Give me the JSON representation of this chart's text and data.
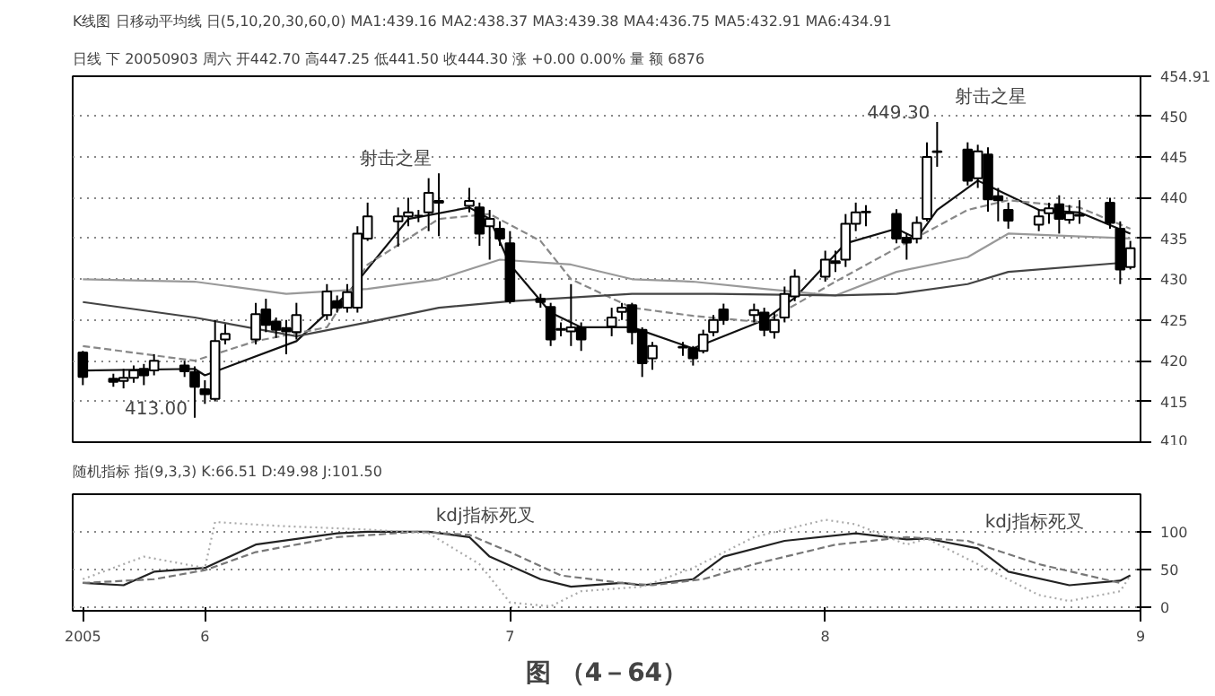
{
  "chart_data": [
    {
      "type": "candlestick",
      "title": "日线 下 20050903 周六 开442.70 高447.25 低441.50 收444.30 涨 +0.00 0.00% 量 额 6876",
      "subtitle": "K线图 日移动平均线 日(5,10,20,30,60,0) MA1:439.16 MA2:438.37 MA3:439.38 MA4:436.75 MA5:432.91 MA6:434.91",
      "x": [
        "2005-05-20",
        "2005-05-23",
        "2005-05-24",
        "2005-05-25",
        "2005-05-26",
        "2005-05-27",
        "2005-05-30",
        "2005-05-31",
        "2005-06-01",
        "2005-06-02",
        "2005-06-03",
        "2005-06-06",
        "2005-06-07",
        "2005-06-08",
        "2005-06-09",
        "2005-06-10",
        "2005-06-13",
        "2005-06-14",
        "2005-06-15",
        "2005-06-16",
        "2005-06-17",
        "2005-06-20",
        "2005-06-21",
        "2005-06-22",
        "2005-06-23",
        "2005-06-24",
        "2005-06-27",
        "2005-06-28",
        "2005-06-29",
        "2005-06-30",
        "2005-07-01",
        "2005-07-04",
        "2005-07-05",
        "2005-07-06",
        "2005-07-07",
        "2005-07-08",
        "2005-07-11",
        "2005-07-12",
        "2005-07-13",
        "2005-07-14",
        "2005-07-15",
        "2005-07-18",
        "2005-07-19",
        "2005-07-20",
        "2005-07-21",
        "2005-07-22",
        "2005-07-25",
        "2005-07-26",
        "2005-07-27",
        "2005-07-28",
        "2005-07-29",
        "2005-08-01",
        "2005-08-02",
        "2005-08-03",
        "2005-08-04",
        "2005-08-05",
        "2005-08-08",
        "2005-08-09",
        "2005-08-10",
        "2005-08-11",
        "2005-08-12",
        "2005-08-15",
        "2005-08-16",
        "2005-08-17",
        "2005-08-18",
        "2005-08-19",
        "2005-08-22",
        "2005-08-23",
        "2005-08-24",
        "2005-08-25",
        "2005-08-26",
        "2005-08-29",
        "2005-08-30",
        "2005-08-31"
      ],
      "ohlc": [
        [
          421.0,
          421.2,
          417.0,
          418.0
        ],
        [
          417.8,
          418.4,
          416.8,
          417.4
        ],
        [
          417.5,
          419.0,
          416.6,
          417.9
        ],
        [
          417.9,
          419.4,
          417.3,
          418.8
        ],
        [
          419.0,
          419.6,
          417.0,
          418.2
        ],
        [
          418.8,
          420.8,
          418.2,
          420.0
        ],
        [
          419.4,
          420.0,
          418.0,
          418.7
        ],
        [
          418.6,
          419.3,
          413.0,
          416.8
        ],
        [
          416.5,
          417.6,
          414.7,
          415.9
        ],
        [
          415.3,
          425.0,
          415.0,
          422.4
        ],
        [
          422.6,
          424.5,
          422.0,
          423.3
        ],
        [
          422.6,
          427.1,
          422.0,
          425.7
        ],
        [
          426.3,
          427.6,
          423.5,
          424.4
        ],
        [
          424.8,
          425.3,
          422.8,
          423.8
        ],
        [
          424.0,
          425.0,
          420.8,
          423.6
        ],
        [
          423.5,
          427.1,
          422.6,
          425.6
        ],
        [
          425.6,
          429.4,
          425.0,
          428.5
        ],
        [
          427.3,
          428.0,
          425.9,
          426.5
        ],
        [
          426.5,
          429.4,
          425.9,
          428.4
        ],
        [
          426.5,
          436.5,
          425.9,
          435.6
        ],
        [
          435.0,
          439.4,
          434.7,
          437.7
        ],
        [
          437.1,
          438.8,
          434.0,
          437.7
        ],
        [
          437.7,
          440.0,
          436.5,
          438.2
        ],
        [
          437.8,
          438.5,
          437.0,
          437.8
        ],
        [
          438.2,
          442.4,
          435.9,
          440.6
        ],
        [
          439.4,
          443.0,
          435.3,
          439.6
        ],
        [
          439.0,
          441.2,
          438.2,
          439.6
        ],
        [
          438.8,
          439.4,
          434.1,
          435.6
        ],
        [
          436.5,
          438.5,
          432.4,
          437.4
        ],
        [
          436.2,
          437.1,
          434.1,
          435.0
        ],
        [
          434.4,
          435.9,
          427.0,
          427.3
        ],
        [
          427.6,
          428.2,
          426.5,
          427.2
        ],
        [
          426.6,
          427.1,
          421.8,
          422.6
        ],
        [
          423.8,
          424.7,
          423.0,
          423.9
        ],
        [
          423.6,
          429.4,
          421.8,
          424.1
        ],
        [
          424.1,
          424.7,
          421.2,
          422.6
        ],
        [
          424.2,
          426.5,
          423.0,
          425.3
        ],
        [
          426.0,
          427.1,
          425.0,
          426.5
        ],
        [
          426.8,
          427.1,
          422.0,
          423.5
        ],
        [
          423.8,
          424.1,
          418.0,
          419.7
        ],
        [
          420.3,
          422.3,
          418.9,
          421.8
        ],
        [
          421.6,
          422.3,
          420.6,
          421.7
        ],
        [
          421.5,
          421.8,
          419.4,
          420.3
        ],
        [
          421.2,
          423.8,
          420.9,
          423.2
        ],
        [
          423.5,
          425.6,
          423.0,
          425.0
        ],
        [
          426.3,
          427.0,
          424.4,
          425.0
        ],
        [
          425.6,
          427.0,
          424.7,
          426.2
        ],
        [
          425.9,
          426.5,
          423.0,
          423.8
        ],
        [
          423.5,
          425.9,
          422.7,
          425.0
        ],
        [
          425.3,
          429.1,
          424.7,
          428.2
        ],
        [
          427.9,
          431.2,
          427.3,
          430.3
        ],
        [
          430.3,
          433.5,
          429.7,
          432.4
        ],
        [
          432.0,
          433.5,
          430.9,
          432.2
        ],
        [
          432.4,
          438.0,
          431.5,
          436.8
        ],
        [
          436.8,
          439.4,
          435.9,
          438.2
        ],
        [
          438.2,
          439.1,
          436.5,
          438.3
        ],
        [
          438.0,
          438.6,
          434.4,
          435.0
        ],
        [
          435.1,
          435.6,
          432.4,
          434.5
        ],
        [
          435.0,
          437.7,
          434.4,
          436.9
        ],
        [
          437.4,
          446.8,
          437.1,
          445.0
        ],
        [
          445.6,
          449.3,
          443.8,
          445.7
        ],
        [
          445.9,
          446.8,
          441.5,
          442.1
        ],
        [
          442.4,
          446.5,
          441.2,
          445.7
        ],
        [
          445.3,
          446.2,
          438.3,
          439.8
        ],
        [
          440.2,
          441.2,
          437.1,
          439.7
        ],
        [
          438.5,
          439.4,
          436.2,
          437.2
        ],
        [
          436.7,
          438.6,
          435.9,
          437.7
        ],
        [
          438.1,
          439.4,
          436.8,
          438.7
        ],
        [
          439.2,
          440.3,
          435.6,
          437.4
        ],
        [
          437.3,
          439.1,
          436.8,
          438.1
        ],
        [
          437.8,
          439.7,
          436.8,
          437.9
        ],
        [
          439.4,
          440.0,
          436.2,
          436.9
        ],
        [
          436.2,
          437.1,
          429.4,
          431.2
        ],
        [
          431.5,
          434.7,
          431.2,
          433.8
        ]
      ],
      "series": [
        {
          "type": "line",
          "color": "#111111",
          "line_style": "solid",
          "x": [
            "2005-05-20",
            "2005-05-31",
            "2005-06-01",
            "2005-06-10",
            "2005-06-15",
            "2005-06-21",
            "2005-06-27",
            "2005-06-29",
            "2005-07-01",
            "2005-07-05",
            "2005-07-08",
            "2005-07-13",
            "2005-07-19",
            "2005-07-26",
            "2005-07-29",
            "2005-08-03",
            "2005-08-08",
            "2005-08-10",
            "2005-08-12",
            "2005-08-16",
            "2005-08-18",
            "2005-08-22",
            "2005-08-26",
            "2005-08-31"
          ],
          "values": [
            418.8,
            419,
            418.2,
            422.4,
            428.2,
            437.4,
            438.8,
            437.4,
            431.8,
            425.9,
            424.1,
            424.1,
            421.5,
            425,
            427.7,
            434.4,
            436.2,
            435,
            438.5,
            442.1,
            440.9,
            438.5,
            438.2,
            435.6
          ]
        },
        {
          "type": "line",
          "color": "#888888",
          "line_style": "dashed",
          "x": [
            "2005-05-20",
            "2005-05-31",
            "2005-06-06",
            "2005-06-13",
            "2005-06-17",
            "2005-06-24",
            "2005-06-29",
            "2005-07-04",
            "2005-07-07",
            "2005-07-13",
            "2005-07-19",
            "2005-07-26",
            "2005-08-02",
            "2005-08-08",
            "2005-08-15",
            "2005-08-19",
            "2005-08-26",
            "2005-08-31"
          ],
          "values": [
            421.8,
            420,
            422.4,
            424.1,
            431.8,
            437.4,
            438,
            434.7,
            430,
            426.5,
            425.5,
            424.7,
            429.7,
            433.8,
            438.5,
            439.7,
            438.8,
            436.2
          ]
        },
        {
          "type": "line",
          "color": "#999999",
          "line_style": "solid",
          "x": [
            "2005-05-20",
            "2005-05-31",
            "2005-06-09",
            "2005-06-17",
            "2005-06-24",
            "2005-06-30",
            "2005-07-07",
            "2005-07-13",
            "2005-07-19",
            "2005-07-26",
            "2005-08-02",
            "2005-08-08",
            "2005-08-15",
            "2005-08-19",
            "2005-08-31"
          ],
          "values": [
            430,
            429.7,
            428.2,
            428.8,
            430,
            432.4,
            431.8,
            430,
            429.7,
            428.8,
            428,
            430.9,
            432.7,
            435.6,
            435
          ]
        },
        {
          "type": "line",
          "color": "#444444",
          "line_style": "solid",
          "x": [
            "2005-05-20",
            "2005-05-31",
            "2005-06-10",
            "2005-06-17",
            "2005-06-24",
            "2005-07-01",
            "2005-07-13",
            "2005-07-21",
            "2005-08-02",
            "2005-08-08",
            "2005-08-15",
            "2005-08-19",
            "2005-08-31"
          ],
          "values": [
            427.2,
            425.3,
            423,
            424.7,
            426.5,
            427.3,
            428.2,
            428.2,
            428,
            428.2,
            429.4,
            430.9,
            432.1
          ]
        }
      ],
      "xlim": [
        "2005-05-19",
        "2005-09-01"
      ],
      "ylim": [
        410,
        454.91
      ],
      "yticks": [
        410,
        415,
        420,
        425,
        430,
        435,
        440,
        445,
        450,
        {
          "value": 454.91,
          "label": "454.91"
        }
      ],
      "tick_labels": "y",
      "grid": "y",
      "annotations": [
        {
          "text": "413.00",
          "x": "2005-05-31",
          "y": 413.0
        },
        {
          "text": "449.30",
          "x": "2005-08-12",
          "y": 449.3
        },
        {
          "text": "射击之星",
          "x": "2005-06-24",
          "y": 443.0
        },
        {
          "text": "射击之星",
          "x": "2005-08-12",
          "y": 449.3
        }
      ]
    },
    {
      "type": "line",
      "title": "随机指标 指(9,3,3) K:66.51 D:49.98 J:101.50",
      "series": [
        {
          "type": "line",
          "color": "#222222",
          "line_style": "solid",
          "x": [
            "2005-05-20",
            "2005-05-24",
            "2005-05-27",
            "2005-06-01",
            "2005-06-06",
            "2005-06-14",
            "2005-06-17",
            "2005-06-23",
            "2005-06-27",
            "2005-06-29",
            "2005-07-04",
            "2005-07-07",
            "2005-07-12",
            "2005-07-14",
            "2005-07-19",
            "2005-07-22",
            "2005-07-28",
            "2005-08-04",
            "2005-08-09",
            "2005-08-11",
            "2005-08-16",
            "2005-08-19",
            "2005-08-25",
            "2005-08-30",
            "2005-08-31"
          ],
          "values": [
            32,
            29,
            47,
            52,
            83,
            98,
            100,
            100,
            93,
            67,
            37,
            27,
            32,
            29,
            37,
            67,
            88,
            98,
            90,
            91,
            78,
            47,
            29,
            35,
            42
          ]
        },
        {
          "type": "line",
          "color": "#777777",
          "line_style": "dashed",
          "x": [
            "2005-05-20",
            "2005-05-27",
            "2005-06-01",
            "2005-06-06",
            "2005-06-14",
            "2005-06-22",
            "2005-06-27",
            "2005-07-01",
            "2005-07-06",
            "2005-07-12",
            "2005-07-15",
            "2005-07-20",
            "2005-07-25",
            "2005-08-02",
            "2005-08-09",
            "2005-08-15",
            "2005-08-22",
            "2005-08-30"
          ],
          "values": [
            32,
            37,
            49,
            73,
            93,
            100,
            96,
            73,
            42,
            32,
            29,
            37,
            57,
            83,
            93,
            88,
            57,
            32
          ]
        },
        {
          "type": "line",
          "color": "#aaaaaa",
          "line_style": "dotted",
          "x": [
            "2005-05-20",
            "2005-05-26",
            "2005-06-01",
            "2005-06-02",
            "2005-06-08",
            "2005-06-17",
            "2005-06-23",
            "2005-06-28",
            "2005-07-01",
            "2005-07-05",
            "2005-07-08",
            "2005-07-14",
            "2005-07-19",
            "2005-07-25",
            "2005-08-01",
            "2005-08-04",
            "2005-08-09",
            "2005-08-11",
            "2005-08-16",
            "2005-08-22",
            "2005-08-25",
            "2005-08-30",
            "2005-08-31"
          ],
          "values": [
            37,
            67,
            52,
            113,
            108,
            103,
            98,
            57,
            6,
            1,
            21,
            27,
            52,
            93,
            116,
            110,
            83,
            91,
            57,
            16,
            8,
            21,
            42
          ]
        }
      ],
      "xlim": [
        "2005-05-19",
        "2005-09-01"
      ],
      "ylim": [
        -5,
        150
      ],
      "yticks": [
        0,
        50,
        100
      ],
      "xticks": [
        {
          "value": "2005-05-20",
          "label": "2005"
        },
        {
          "value": "2005-06-01",
          "label": "6"
        },
        {
          "value": "2005-07-01",
          "label": "7"
        },
        {
          "value": "2005-08-01",
          "label": "8"
        },
        {
          "value": "2005-09-01",
          "label": "9"
        }
      ],
      "grid": "y",
      "annotations": [
        {
          "text": "kdj指标死叉",
          "x": "2005-06-23",
          "y": 100
        },
        {
          "text": "kdj指标死叉",
          "x": "2005-08-16",
          "y": 91
        },
        "图 （4－64）"
      ]
    }
  ]
}
